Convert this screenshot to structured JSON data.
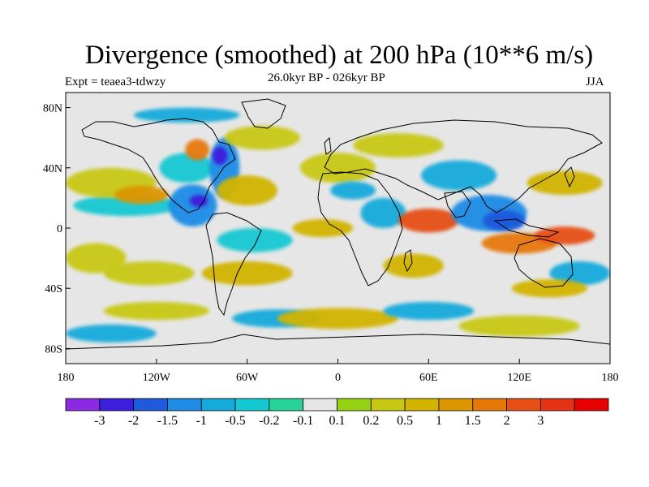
{
  "title": "Divergence (smoothed) at 200 hPa (10**6 m/s)",
  "experiment": "Expt = teaea3-tdwzy",
  "period": "26.0kyr BP - 026kyr BP",
  "season": "JJA",
  "map": {
    "lon_range": [
      -180,
      180
    ],
    "lat_range": [
      -90,
      90
    ],
    "background_color": "#e6e6e6"
  },
  "y_ticks": [
    {
      "lat": 80,
      "label": "80N"
    },
    {
      "lat": 40,
      "label": "40N"
    },
    {
      "lat": 0,
      "label": "0"
    },
    {
      "lat": -40,
      "label": "40S"
    },
    {
      "lat": -80,
      "label": "80S"
    }
  ],
  "x_ticks": [
    {
      "lon": -180,
      "label": "180"
    },
    {
      "lon": -120,
      "label": "120W"
    },
    {
      "lon": -60,
      "label": "60W"
    },
    {
      "lon": 0,
      "label": "0"
    },
    {
      "lon": 60,
      "label": "60E"
    },
    {
      "lon": 120,
      "label": "120E"
    },
    {
      "lon": 180,
      "label": "180"
    }
  ],
  "colorbar": {
    "colors": [
      "#8a2be2",
      "#3c1edc",
      "#1e5adc",
      "#1e8ce6",
      "#14aadc",
      "#14c8d2",
      "#28d29b",
      "#e6e6e6",
      "#96d214",
      "#c8c814",
      "#d2b400",
      "#dc9600",
      "#e6780a",
      "#e65014",
      "#e63214",
      "#e60000"
    ],
    "labels": [
      "-3",
      "-2",
      "-1.5",
      "-1",
      "-0.5",
      "-0.2",
      "-0.1",
      "0.1",
      "0.2",
      "0.5",
      "1",
      "1.5",
      "2",
      "3"
    ]
  },
  "blobs": [
    {
      "lon": -125,
      "lat": -30,
      "rx": 30,
      "ry": 8,
      "level": 9
    },
    {
      "lon": -160,
      "lat": -20,
      "rx": 20,
      "ry": 10,
      "level": 9
    },
    {
      "lon": -140,
      "lat": 15,
      "rx": 35,
      "ry": 7,
      "level": 5
    },
    {
      "lon": -150,
      "lat": 30,
      "rx": 30,
      "ry": 10,
      "level": 9
    },
    {
      "lon": -130,
      "lat": 22,
      "rx": 18,
      "ry": 6,
      "level": 11
    },
    {
      "lon": -100,
      "lat": 40,
      "rx": 18,
      "ry": 10,
      "level": 5
    },
    {
      "lon": -96,
      "lat": 15,
      "rx": 16,
      "ry": 14,
      "level": 3
    },
    {
      "lon": -92,
      "lat": 18,
      "rx": 6,
      "ry": 4,
      "level": 1
    },
    {
      "lon": -75,
      "lat": 40,
      "rx": 10,
      "ry": 20,
      "level": 3
    },
    {
      "lon": -78,
      "lat": 48,
      "rx": 5,
      "ry": 6,
      "level": 1
    },
    {
      "lon": -93,
      "lat": 52,
      "rx": 8,
      "ry": 7,
      "level": 12
    },
    {
      "lon": -50,
      "lat": 60,
      "rx": 25,
      "ry": 8,
      "level": 9
    },
    {
      "lon": -60,
      "lat": 25,
      "rx": 20,
      "ry": 10,
      "level": 10
    },
    {
      "lon": -55,
      "lat": -8,
      "rx": 25,
      "ry": 8,
      "level": 5
    },
    {
      "lon": -60,
      "lat": -30,
      "rx": 30,
      "ry": 8,
      "level": 10
    },
    {
      "lon": -40,
      "lat": -60,
      "rx": 30,
      "ry": 6,
      "level": 4
    },
    {
      "lon": -10,
      "lat": 0,
      "rx": 20,
      "ry": 6,
      "level": 10
    },
    {
      "lon": 0,
      "lat": 40,
      "rx": 25,
      "ry": 10,
      "level": 9
    },
    {
      "lon": 10,
      "lat": 25,
      "rx": 15,
      "ry": 6,
      "level": 4
    },
    {
      "lon": 40,
      "lat": 55,
      "rx": 30,
      "ry": 8,
      "level": 9
    },
    {
      "lon": 30,
      "lat": 10,
      "rx": 15,
      "ry": 10,
      "level": 4
    },
    {
      "lon": 60,
      "lat": 5,
      "rx": 20,
      "ry": 8,
      "level": 13
    },
    {
      "lon": 50,
      "lat": -25,
      "rx": 20,
      "ry": 8,
      "level": 10
    },
    {
      "lon": 80,
      "lat": 35,
      "rx": 25,
      "ry": 10,
      "level": 4
    },
    {
      "lon": 100,
      "lat": 10,
      "rx": 25,
      "ry": 12,
      "level": 3
    },
    {
      "lon": 110,
      "lat": 5,
      "rx": 14,
      "ry": 7,
      "level": 2
    },
    {
      "lon": 120,
      "lat": -10,
      "rx": 25,
      "ry": 7,
      "level": 12
    },
    {
      "lon": 150,
      "lat": -5,
      "rx": 20,
      "ry": 6,
      "level": 13
    },
    {
      "lon": 150,
      "lat": 30,
      "rx": 25,
      "ry": 8,
      "level": 10
    },
    {
      "lon": 160,
      "lat": -30,
      "rx": 20,
      "ry": 8,
      "level": 4
    },
    {
      "lon": 140,
      "lat": -40,
      "rx": 25,
      "ry": 6,
      "level": 10
    },
    {
      "lon": 0,
      "lat": -60,
      "rx": 40,
      "ry": 7,
      "level": 10
    },
    {
      "lon": 60,
      "lat": -55,
      "rx": 30,
      "ry": 6,
      "level": 4
    },
    {
      "lon": -120,
      "lat": -55,
      "rx": 35,
      "ry": 6,
      "level": 9
    },
    {
      "lon": -150,
      "lat": -70,
      "rx": 30,
      "ry": 6,
      "level": 4
    },
    {
      "lon": 120,
      "lat": -65,
      "rx": 40,
      "ry": 7,
      "level": 9
    },
    {
      "lon": -100,
      "lat": 75,
      "rx": 35,
      "ry": 5,
      "level": 4
    }
  ]
}
